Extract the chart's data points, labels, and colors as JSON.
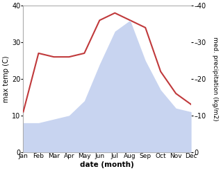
{
  "months": [
    "Jan",
    "Feb",
    "Mar",
    "Apr",
    "May",
    "Jun",
    "Jul",
    "Aug",
    "Sep",
    "Oct",
    "Nov",
    "Dec"
  ],
  "temperature": [
    11,
    27,
    26,
    26,
    27,
    36,
    38,
    36,
    34,
    22,
    16,
    13
  ],
  "precipitation": [
    8,
    8,
    9,
    10,
    14,
    24,
    33,
    36,
    25,
    17,
    12,
    11
  ],
  "temp_color": "#c0393b",
  "precip_color": "#c8d4f0",
  "ylim": [
    0,
    40
  ],
  "ylabel_left": "max temp (C)",
  "ylabel_right": "med. precipitation (kg/m2)",
  "xlabel": "date (month)",
  "bg_color": "#ffffff",
  "yticks": [
    0,
    10,
    20,
    30,
    40
  ],
  "ytick_labels_left": [
    "0",
    "10",
    "20",
    "30",
    "40"
  ],
  "ytick_labels_right": [
    "0",
    "10",
    "20",
    "30",
    "40"
  ]
}
